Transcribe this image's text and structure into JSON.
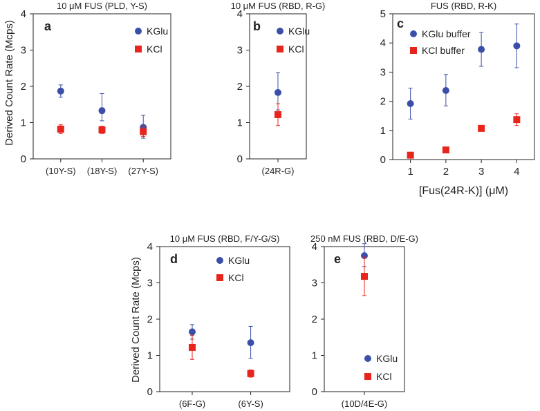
{
  "colors": {
    "kglu": "#3b4fa8",
    "kcl": "#e8251d",
    "axis": "#222222"
  },
  "ylabel_top": "Derived Count Rate (Mcps)",
  "ylabel_bottom": "Derived Count Rate (Mcps)",
  "chart_data": [
    {
      "id": "a",
      "type": "scatter",
      "panel_label": "a",
      "title": "10 μM FUS (PLD, Y-S)",
      "categories": [
        "(10Y-S)",
        "(18Y-S)",
        "(27Y-S)"
      ],
      "ylim": [
        0,
        4
      ],
      "yticks": [
        0,
        1,
        2,
        3,
        4
      ],
      "ytick_labels": [
        "0",
        "1",
        "2",
        "3",
        "4"
      ],
      "legend_position": "top-right",
      "series": [
        {
          "name": "KGlu",
          "marker": "circle",
          "values": [
            1.87,
            1.33,
            0.87
          ],
          "err_low": [
            0.17,
            0.28,
            0.3
          ],
          "err_high": [
            0.17,
            0.47,
            0.33
          ]
        },
        {
          "name": "KCl",
          "marker": "square",
          "values": [
            0.82,
            0.8,
            0.75
          ],
          "err_low": [
            0.12,
            0.1,
            0.13
          ],
          "err_high": [
            0.12,
            0.1,
            0.13
          ]
        }
      ]
    },
    {
      "id": "b",
      "type": "scatter",
      "panel_label": "b",
      "title": "10 μM FUS (RBD, R-G)",
      "categories": [
        "(24R-G)"
      ],
      "ylim": [
        0,
        4
      ],
      "yticks": [
        0,
        1,
        2,
        3,
        4
      ],
      "ytick_labels": [
        "0",
        "1",
        "2",
        "3",
        "4"
      ],
      "legend_position": "top-right",
      "series": [
        {
          "name": "KGlu",
          "marker": "circle",
          "values": [
            1.83
          ],
          "err_low": [
            0.48
          ],
          "err_high": [
            0.55
          ]
        },
        {
          "name": "KCl",
          "marker": "square",
          "values": [
            1.22
          ],
          "err_low": [
            0.3
          ],
          "err_high": [
            0.3
          ]
        }
      ]
    },
    {
      "id": "c",
      "type": "scatter",
      "panel_label": "c",
      "title": "FUS (RBD, R-K)",
      "xlabel": "[Fus(24R-K)] (μM)",
      "x": [
        1,
        2,
        3,
        4
      ],
      "xlim": [
        0.5,
        4.5
      ],
      "xticks": [
        1,
        2,
        3,
        4
      ],
      "xtick_labels": [
        "1",
        "2",
        "3",
        "4"
      ],
      "ylim": [
        0,
        5
      ],
      "yticks": [
        0,
        1,
        2,
        3,
        4,
        5
      ],
      "ytick_labels": [
        "0",
        "1",
        "2",
        "3",
        "4",
        "5"
      ],
      "legend_position": "top-left",
      "series": [
        {
          "name": "KGlu buffer",
          "marker": "circle",
          "values": [
            1.92,
            2.37,
            3.78,
            3.9
          ],
          "err_low": [
            0.53,
            0.53,
            0.58,
            0.75
          ],
          "err_high": [
            0.53,
            0.55,
            0.58,
            0.75
          ]
        },
        {
          "name": "KCl buffer",
          "marker": "square",
          "values": [
            0.15,
            0.33,
            1.07,
            1.37
          ],
          "err_low": [
            0.03,
            0.04,
            0.05,
            0.2
          ],
          "err_high": [
            0.03,
            0.04,
            0.05,
            0.2
          ]
        }
      ]
    },
    {
      "id": "d",
      "type": "scatter",
      "panel_label": "d",
      "title": "10 μM FUS (RBD, F/Y-G/S)",
      "categories": [
        "(6F-G)",
        "(6Y-S)"
      ],
      "ylim": [
        0,
        4
      ],
      "yticks": [
        0,
        1,
        2,
        3,
        4
      ],
      "ytick_labels": [
        "0",
        "1",
        "2",
        "3",
        "4"
      ],
      "legend_position": "top-right",
      "series": [
        {
          "name": "KGlu",
          "marker": "circle",
          "values": [
            1.65,
            1.35
          ],
          "err_low": [
            0.2,
            0.43
          ],
          "err_high": [
            0.2,
            0.45
          ]
        },
        {
          "name": "KCl",
          "marker": "square",
          "values": [
            1.22,
            0.5
          ],
          "err_low": [
            0.33,
            0.1
          ],
          "err_high": [
            0.33,
            0.1
          ]
        }
      ]
    },
    {
      "id": "e",
      "type": "scatter",
      "panel_label": "e",
      "title": "250 nM FUS (RBD, D/E-G)",
      "categories": [
        "(10D/4E-G)"
      ],
      "ylim": [
        0,
        4
      ],
      "yticks": [
        0,
        1,
        2,
        3,
        4
      ],
      "ytick_labels": [
        "0",
        "1",
        "2",
        "3",
        "4"
      ],
      "legend_position": "bottom-right",
      "series": [
        {
          "name": "KGlu",
          "marker": "circle",
          "values": [
            3.75
          ],
          "err_low": [
            0.3
          ],
          "err_high": [
            0.33
          ]
        },
        {
          "name": "KCl",
          "marker": "square",
          "values": [
            3.18
          ],
          "err_low": [
            0.53
          ],
          "err_high": [
            0.53
          ]
        }
      ]
    }
  ]
}
